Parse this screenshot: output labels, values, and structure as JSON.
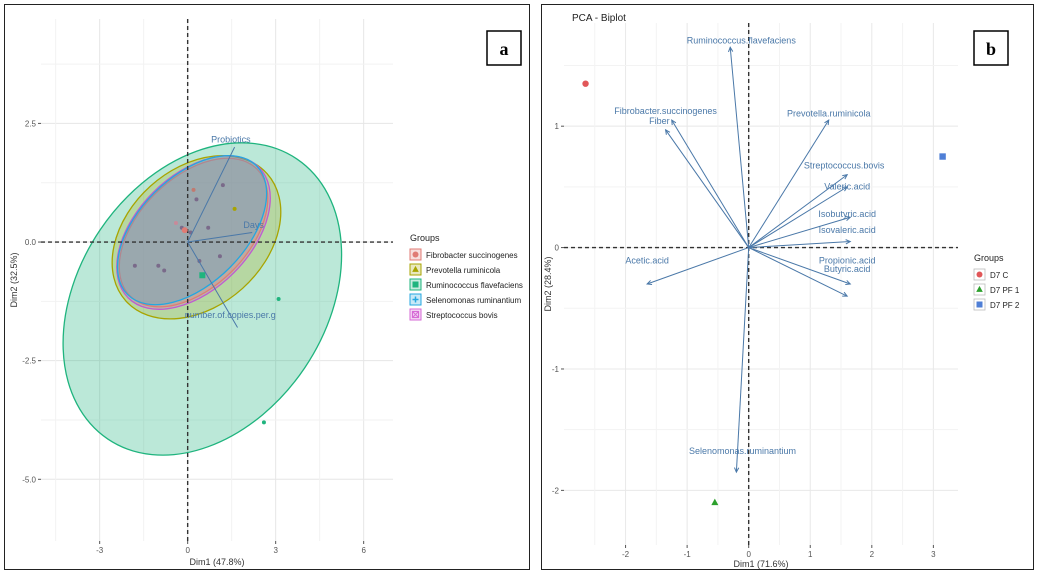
{
  "chart_data": [
    {
      "type": "scatter",
      "panel_label": "a",
      "title": "",
      "xlabel": "Dim1 (47.8%)",
      "ylabel": "Dim2 (32.5%)",
      "xlim": [
        -5,
        7
      ],
      "ylim": [
        -6.3,
        4.7
      ],
      "xticks": [
        -3,
        0,
        3,
        6
      ],
      "yticks": [
        2.5,
        0.0,
        -2.5,
        -5.0
      ],
      "ytick_labels": [
        "2.5",
        "0.0",
        "-2.5",
        "-5.0"
      ],
      "legend_title": "Groups",
      "legend_position": "right",
      "groups": [
        {
          "name": "Fibrobacter succinogenes",
          "color": "#e07b74",
          "marker": "circle"
        },
        {
          "name": "Prevotella ruminicola",
          "color": "#a8a400",
          "marker": "triangle"
        },
        {
          "name": "Ruminococcus flavefaciens",
          "color": "#1fb47e",
          "marker": "square"
        },
        {
          "name": "Selenomonas ruminantium",
          "color": "#24a7e0",
          "marker": "plus"
        },
        {
          "name": "Streptococcus bovis",
          "color": "#d66ad6",
          "marker": "boxcross"
        }
      ],
      "ellipses": [
        {
          "group": "Ruminococcus flavefaciens",
          "color": "#1fb47e",
          "cx": 0.5,
          "cy": -1.2,
          "rx": 6.4,
          "ry": 2.6,
          "angle": -56
        },
        {
          "group": "Prevotella ruminicola",
          "color": "#a8a400",
          "cx": 0.3,
          "cy": 0.1,
          "rx": 3.6,
          "ry": 1.45,
          "angle": -42
        },
        {
          "group": "Streptococcus bovis",
          "color": "#c05ad0",
          "cx": 0.2,
          "cy": 0.2,
          "rx": 3.5,
          "ry": 1.2,
          "angle": -45
        },
        {
          "group": "Fibrobacter succinogenes",
          "color": "#e07b74",
          "cx": 0.2,
          "cy": 0.2,
          "rx": 3.4,
          "ry": 1.15,
          "angle": -45
        },
        {
          "group": "Selenomonas ruminantium",
          "color": "#24a7e0",
          "cx": 0.15,
          "cy": 0.25,
          "rx": 3.45,
          "ry": 1.12,
          "angle": -45
        }
      ],
      "points": [
        {
          "x": -1.8,
          "y": -0.5,
          "color": "#7a6a8a"
        },
        {
          "x": -1.0,
          "y": -0.5,
          "color": "#7a6a8a"
        },
        {
          "x": -0.8,
          "y": -0.6,
          "color": "#7a6a8a"
        },
        {
          "x": -0.4,
          "y": 0.4,
          "color": "#c78a9a"
        },
        {
          "x": -0.2,
          "y": 0.3,
          "color": "#7a6a8a"
        },
        {
          "x": 0.1,
          "y": 0.2,
          "color": "#7a6a8a"
        },
        {
          "x": 0.2,
          "y": 1.1,
          "color": "#c07a70"
        },
        {
          "x": 0.3,
          "y": 0.9,
          "color": "#7a6a8a"
        },
        {
          "x": 0.4,
          "y": -0.4,
          "color": "#7a6a8a"
        },
        {
          "x": 0.7,
          "y": 0.3,
          "color": "#7a6a8a"
        },
        {
          "x": 1.2,
          "y": 1.2,
          "color": "#7a6a8a"
        },
        {
          "x": 1.1,
          "y": -0.3,
          "color": "#7a6a8a"
        },
        {
          "x": 1.6,
          "y": 0.7,
          "color": "#a8a400"
        },
        {
          "x": 0.5,
          "y": -0.7,
          "color": "#1fb47e"
        },
        {
          "x": 3.1,
          "y": -1.2,
          "color": "#1fb47e"
        },
        {
          "x": 2.6,
          "y": -3.8,
          "color": "#1fb47e"
        }
      ],
      "centroids": [
        {
          "x": 0.5,
          "y": -0.7,
          "color": "#1fb47e",
          "marker": "square"
        },
        {
          "x": -0.1,
          "y": 0.25,
          "color": "#e07b74",
          "marker": "circle"
        }
      ],
      "vectors": [
        {
          "name": "Probiotics",
          "x": 1.6,
          "y": 2.0,
          "lx": 0.8,
          "ly": 2.1
        },
        {
          "name": "Days",
          "x": 2.2,
          "y": 0.2,
          "lx": 1.9,
          "ly": 0.3
        },
        {
          "name": "number.of.copies.per.g",
          "x": 1.7,
          "y": -1.8,
          "lx": -0.1,
          "ly": -1.6
        }
      ]
    },
    {
      "type": "scatter",
      "panel_label": "b",
      "title": "PCA - Biplot",
      "xlabel": "Dim1 (71.6%)",
      "ylabel": "Dim2 (28.4%)",
      "xlim": [
        -3.0,
        3.4
      ],
      "ylim": [
        -2.45,
        1.85
      ],
      "xticks": [
        -2,
        -1,
        0,
        1,
        2,
        3
      ],
      "yticks": [
        1,
        0,
        -1,
        -2
      ],
      "legend_title": "Groups",
      "legend_position": "right",
      "groups": [
        {
          "name": "D7 C",
          "color": "#e15759",
          "marker": "circle"
        },
        {
          "name": "D7 PF 1",
          "color": "#2ca02c",
          "marker": "triangle"
        },
        {
          "name": "D7 PF 2",
          "color": "#4f7fd6",
          "marker": "square"
        }
      ],
      "points": [
        {
          "x": -2.65,
          "y": 1.35,
          "group": "D7 C",
          "color": "#e15759",
          "marker": "circle"
        },
        {
          "x": -0.55,
          "y": -2.1,
          "group": "D7 PF 1",
          "color": "#2ca02c",
          "marker": "triangle"
        },
        {
          "x": 3.15,
          "y": 0.75,
          "group": "D7 PF 2",
          "color": "#4f7fd6",
          "marker": "square"
        }
      ],
      "vectors": [
        {
          "name": "Ruminococcus.flavefaciens",
          "x": -0.3,
          "y": 1.65,
          "lx": -0.12,
          "ly": 1.68
        },
        {
          "name": "Fibrobacter.succinogenes",
          "x": -1.25,
          "y": 1.05,
          "lx": -1.35,
          "ly": 1.1
        },
        {
          "name": "Fiber",
          "x": -1.35,
          "y": 0.97,
          "lx": -1.45,
          "ly": 1.02
        },
        {
          "name": "Prevotella.ruminicola",
          "x": 1.3,
          "y": 1.05,
          "lx": 1.3,
          "ly": 1.08
        },
        {
          "name": "Streptococcus.bovis",
          "x": 1.6,
          "y": 0.6,
          "lx": 1.55,
          "ly": 0.65
        },
        {
          "name": "Valeric.acid",
          "x": 1.6,
          "y": 0.5,
          "lx": 1.6,
          "ly": 0.48
        },
        {
          "name": "Isobutyric.acid",
          "x": 1.65,
          "y": 0.25,
          "lx": 1.6,
          "ly": 0.25
        },
        {
          "name": "Isovaleric.acid",
          "x": 1.65,
          "y": 0.05,
          "lx": 1.6,
          "ly": 0.12
        },
        {
          "name": "Propionic.acid",
          "x": 1.65,
          "y": -0.3,
          "lx": 1.6,
          "ly": -0.13
        },
        {
          "name": "Butyric.acid",
          "x": 1.6,
          "y": -0.4,
          "lx": 1.6,
          "ly": -0.2
        },
        {
          "name": "Acetic.acid",
          "x": -1.65,
          "y": -0.3,
          "lx": -1.65,
          "ly": -0.13
        },
        {
          "name": "Selenomonas.ruminantium",
          "x": -0.2,
          "y": -1.85,
          "lx": -0.1,
          "ly": -1.7
        }
      ]
    }
  ]
}
